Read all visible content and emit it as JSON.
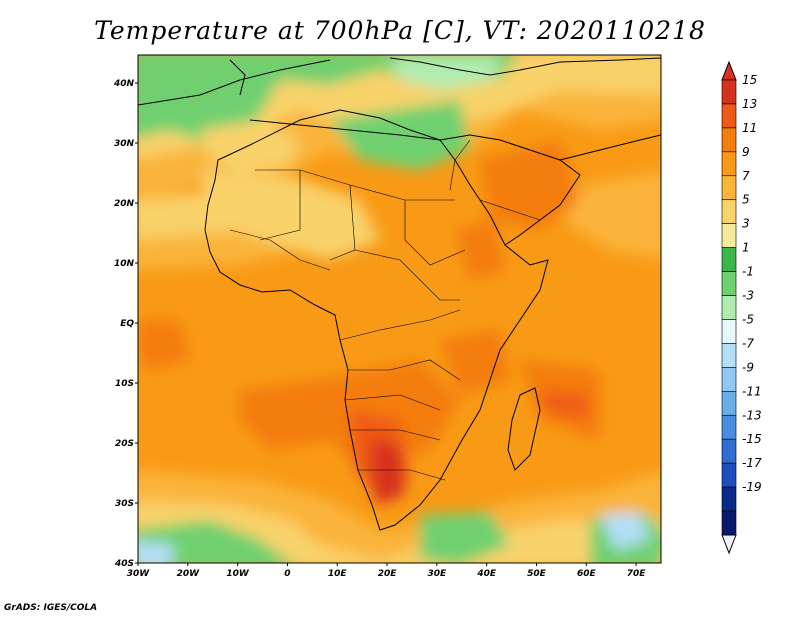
{
  "title": "Temperature at 700hPa [C], VT: 2020110218",
  "footer": "GrADS: IGES/COLA",
  "map": {
    "region": "Africa",
    "variable": "Temperature at 700hPa",
    "units": "C",
    "valid_time": "2020110218",
    "lon_labels": [
      "30W",
      "20W",
      "10W",
      "0",
      "10E",
      "20E",
      "30E",
      "40E",
      "50E",
      "60E",
      "70E"
    ],
    "lat_labels": [
      "40N",
      "30N",
      "20N",
      "10N",
      "EQ",
      "10S",
      "20S",
      "30S",
      "40S"
    ]
  },
  "colorbar": {
    "labels": [
      "15",
      "13",
      "11",
      "9",
      "7",
      "5",
      "3",
      "1",
      "-1",
      "-3",
      "-5",
      "-7",
      "-9",
      "-11",
      "-13",
      "-15",
      "-17",
      "-19"
    ],
    "colors": [
      "#d7301f",
      "#ef5a18",
      "#f47d0e",
      "#f89a16",
      "#fab43a",
      "#f9d26a",
      "#f5ea9b",
      "#3cb54a",
      "#6fd06f",
      "#b0ecb0",
      "#e6f7f9",
      "#b3dff7",
      "#8fc8f2",
      "#6aaee8",
      "#4a8fdf",
      "#2f6dd3",
      "#1c4ec0",
      "#0a2a8a",
      "#0a1a6a"
    ]
  }
}
